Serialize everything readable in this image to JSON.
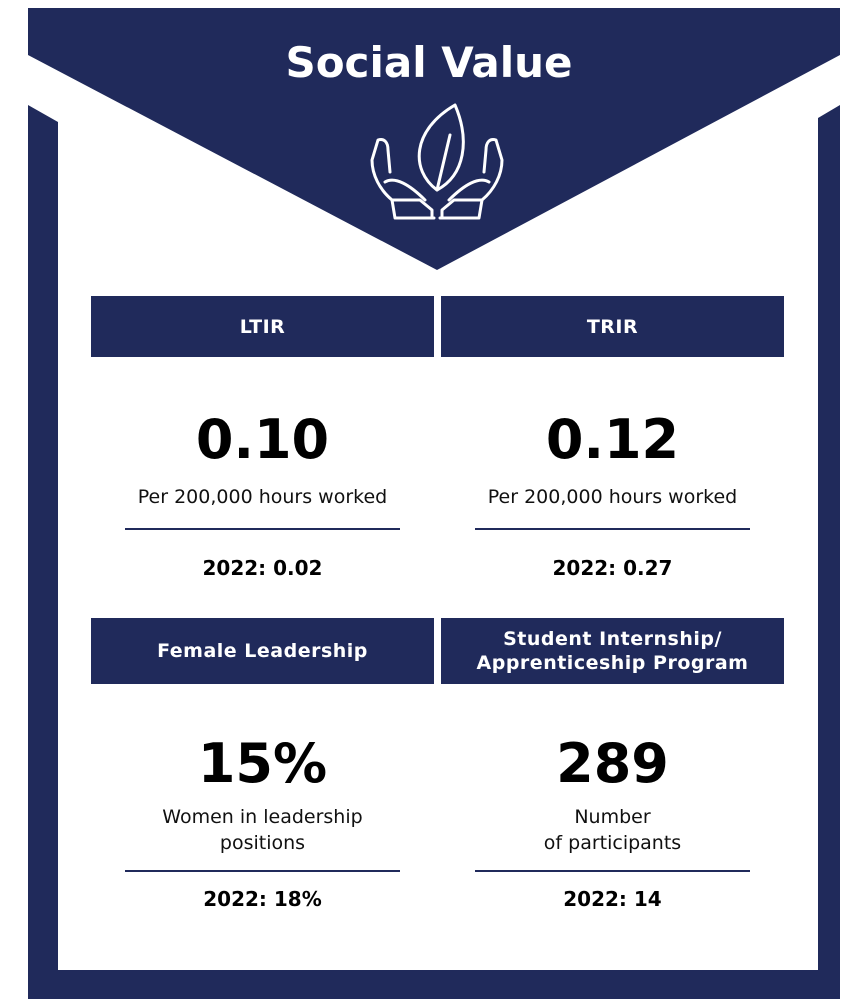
{
  "title": "Social Value",
  "panels": [
    {
      "header": [
        "LTIR"
      ],
      "value": "0.10",
      "description": [
        "Per 200,000 hours worked"
      ],
      "prior": "2022: 0.02"
    },
    {
      "header": [
        "TRIR"
      ],
      "value": "0.12",
      "description": [
        "Per 200,000 hours worked"
      ],
      "prior": "2022: 0.27"
    },
    {
      "header": [
        "Female Leadership"
      ],
      "value": "15%",
      "description": [
        "Women in leadership",
        "positions"
      ],
      "prior": "2022: 18%"
    },
    {
      "header": [
        "Student Internship/",
        "Apprenticeship Program"
      ],
      "value": "289",
      "description": [
        "Number",
        "of participants"
      ],
      "prior": "2022: 14"
    }
  ]
}
